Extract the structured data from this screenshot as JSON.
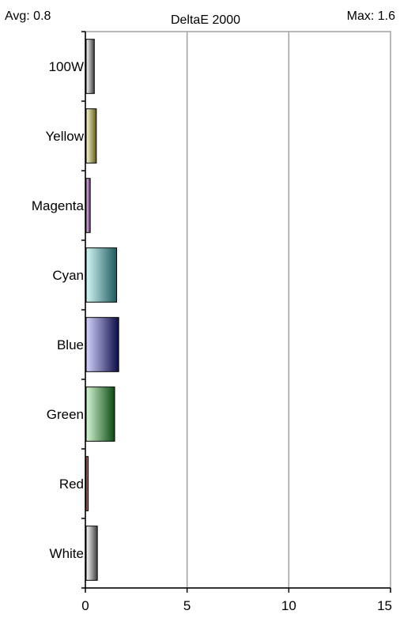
{
  "header": {
    "avg_text": "Avg: 0.8",
    "title": "DeltaE 2000",
    "max_text": "Max: 1.6"
  },
  "chart_data": {
    "type": "bar",
    "orientation": "horizontal",
    "title": "DeltaE 2000",
    "categories": [
      "100W",
      "Yellow",
      "Magenta",
      "Cyan",
      "Blue",
      "Green",
      "Red",
      "White"
    ],
    "values": [
      0.4,
      0.5,
      0.2,
      1.5,
      1.6,
      1.4,
      0.1,
      0.55
    ],
    "xlim": [
      0,
      15
    ],
    "xticks": [
      "0",
      "5",
      "10",
      "15"
    ],
    "grid": "vertical",
    "legend": "none",
    "colors": {
      "100W": [
        "#ffffff",
        "#3c3c3c"
      ],
      "Yellow": [
        "#fffbd0",
        "#5c5a18"
      ],
      "Magenta": [
        "#f4d2fa",
        "#5a2a66"
      ],
      "Cyan": [
        "#d4f6f6",
        "#1f5a5f"
      ],
      "Blue": [
        "#d4d4ff",
        "#0c0c46"
      ],
      "Green": [
        "#d4f6d4",
        "#0c4a12"
      ],
      "Red": [
        "#ffd4d4",
        "#5a1212"
      ],
      "White": [
        "#ffffff",
        "#3c3c3c"
      ]
    }
  }
}
